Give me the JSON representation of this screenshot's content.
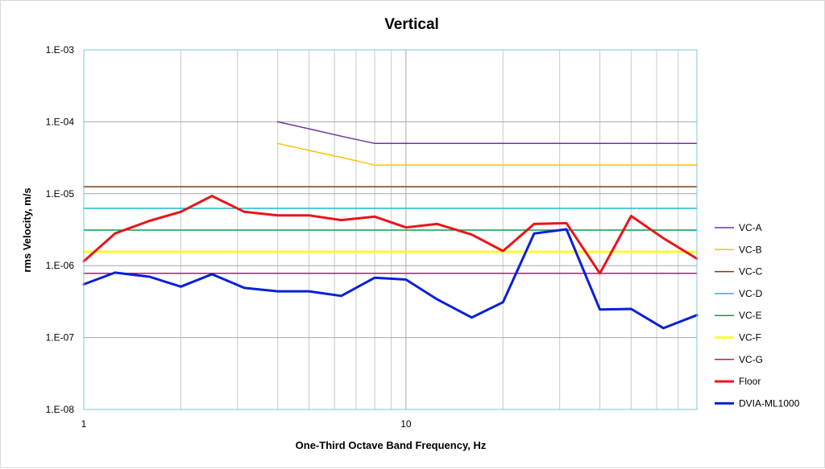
{
  "chart_data": {
    "type": "line",
    "title": "Vertical",
    "xlabel": "One-Third Octave Band Frequency, Hz",
    "ylabel": "rms Velocity, m/s",
    "x_scale": "log",
    "y_scale": "log",
    "xlim": [
      1,
      80
    ],
    "ylim": [
      1e-08,
      0.001
    ],
    "x_ticks": [
      1,
      10
    ],
    "x_tick_labels": [
      "1",
      "10"
    ],
    "y_ticks": [
      1e-08,
      1e-07,
      1e-06,
      1e-05,
      0.0001,
      0.001
    ],
    "y_tick_labels": [
      "1.E-08",
      "1.E-07",
      "1.E-06",
      "1.E-05",
      "1.E-04",
      "1.E-03"
    ],
    "grid": true,
    "legend_position": "right",
    "series": [
      {
        "name": "VC-A",
        "color": "#7030a0",
        "width": 1.5,
        "x": [
          4,
          5,
          6.3,
          8,
          10,
          12.5,
          16,
          20,
          25,
          31.5,
          40,
          50,
          63,
          80
        ],
        "y": [
          0.0001,
          8e-05,
          6.3e-05,
          5e-05,
          5e-05,
          5e-05,
          5e-05,
          5e-05,
          5e-05,
          5e-05,
          5e-05,
          5e-05,
          5e-05,
          5e-05
        ]
      },
      {
        "name": "VC-B",
        "color": "#ffc000",
        "width": 1.5,
        "x": [
          4,
          5,
          6.3,
          8,
          10,
          12.5,
          16,
          20,
          25,
          31.5,
          40,
          50,
          63,
          80
        ],
        "y": [
          5e-05,
          4e-05,
          3.2e-05,
          2.5e-05,
          2.5e-05,
          2.5e-05,
          2.5e-05,
          2.5e-05,
          2.5e-05,
          2.5e-05,
          2.5e-05,
          2.5e-05,
          2.5e-05,
          2.5e-05
        ]
      },
      {
        "name": "VC-C",
        "color": "#843c0c",
        "width": 1.5,
        "x": [
          1,
          80
        ],
        "y": [
          1.25e-05,
          1.25e-05
        ]
      },
      {
        "name": "VC-D",
        "color": "#1fb6d4",
        "width": 1.5,
        "x": [
          1,
          80
        ],
        "y": [
          6.25e-06,
          6.25e-06
        ]
      },
      {
        "name": "VC-E",
        "color": "#00a04a",
        "width": 1.5,
        "x": [
          1,
          80
        ],
        "y": [
          3.12e-06,
          3.12e-06
        ]
      },
      {
        "name": "VC-F",
        "color": "#ffff00",
        "width": 2.5,
        "x": [
          1,
          80
        ],
        "y": [
          1.56e-06,
          1.56e-06
        ]
      },
      {
        "name": "VC-G",
        "color": "#c0126b",
        "width": 1.5,
        "x": [
          1,
          80
        ],
        "y": [
          7.8e-07,
          7.8e-07
        ]
      },
      {
        "name": "Floor",
        "color": "#e8141b",
        "width": 3,
        "x": [
          1,
          1.25,
          1.6,
          2,
          2.5,
          3.15,
          4,
          5,
          6.3,
          8,
          10,
          12.5,
          16,
          20,
          25,
          31.5,
          40,
          50,
          63,
          80
        ],
        "y": [
          1.15e-06,
          2.8e-06,
          4.2e-06,
          5.6e-06,
          9.3e-06,
          5.6e-06,
          5e-06,
          5e-06,
          4.3e-06,
          4.8e-06,
          3.4e-06,
          3.8e-06,
          2.7e-06,
          1.6e-06,
          3.8e-06,
          3.9e-06,
          7.8e-07,
          4.9e-06,
          2.4e-06,
          1.25e-06
        ]
      },
      {
        "name": "DVIA-ML1000",
        "color": "#0a1fd6",
        "width": 3,
        "x": [
          1,
          1.25,
          1.6,
          2,
          2.5,
          3.15,
          4,
          5,
          6.3,
          8,
          10,
          12.5,
          16,
          20,
          25,
          31.5,
          40,
          50,
          63,
          80
        ],
        "y": [
          5.5e-07,
          8e-07,
          7e-07,
          5.1e-07,
          7.6e-07,
          4.9e-07,
          4.4e-07,
          4.4e-07,
          3.8e-07,
          6.8e-07,
          6.4e-07,
          3.4e-07,
          1.9e-07,
          3.1e-07,
          2.8e-06,
          3.2e-06,
          2.45e-07,
          2.5e-07,
          1.35e-07,
          2.05e-07
        ]
      }
    ]
  }
}
